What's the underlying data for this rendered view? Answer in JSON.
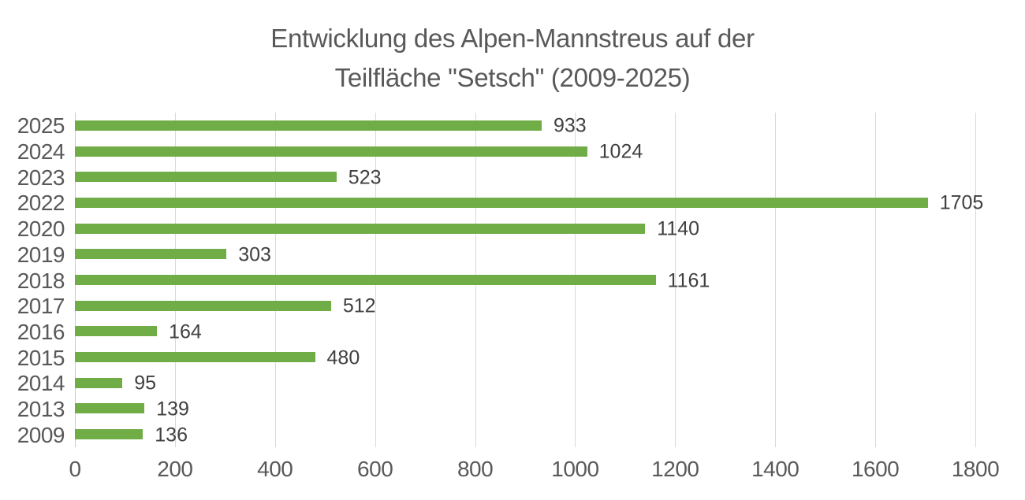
{
  "chart_data": {
    "type": "bar",
    "orientation": "horizontal",
    "title_line1": "Entwicklung des Alpen-Mannstreus auf der",
    "title_line2": "Teilfläche \"Setsch\" (2009-2025)",
    "categories": [
      "2025",
      "2024",
      "2023",
      "2022",
      "2020",
      "2019",
      "2018",
      "2017",
      "2016",
      "2015",
      "2014",
      "2013",
      "2009"
    ],
    "values": [
      933,
      1024,
      523,
      1705,
      1140,
      303,
      1161,
      512,
      164,
      480,
      95,
      139,
      136
    ],
    "data_labels_shown": true,
    "xlabel": "",
    "ylabel": "",
    "xlim": [
      0,
      1800
    ],
    "xticks": [
      0,
      200,
      400,
      600,
      800,
      1000,
      1200,
      1400,
      1600,
      1800
    ],
    "grid": true,
    "legend": false,
    "colors": {
      "bar": "#70AD47",
      "gridline": "#D9D9D9",
      "axis_line": "#C9C9C9",
      "title_text": "#595959",
      "axis_text": "#595959",
      "value_label_text": "#404040"
    }
  }
}
